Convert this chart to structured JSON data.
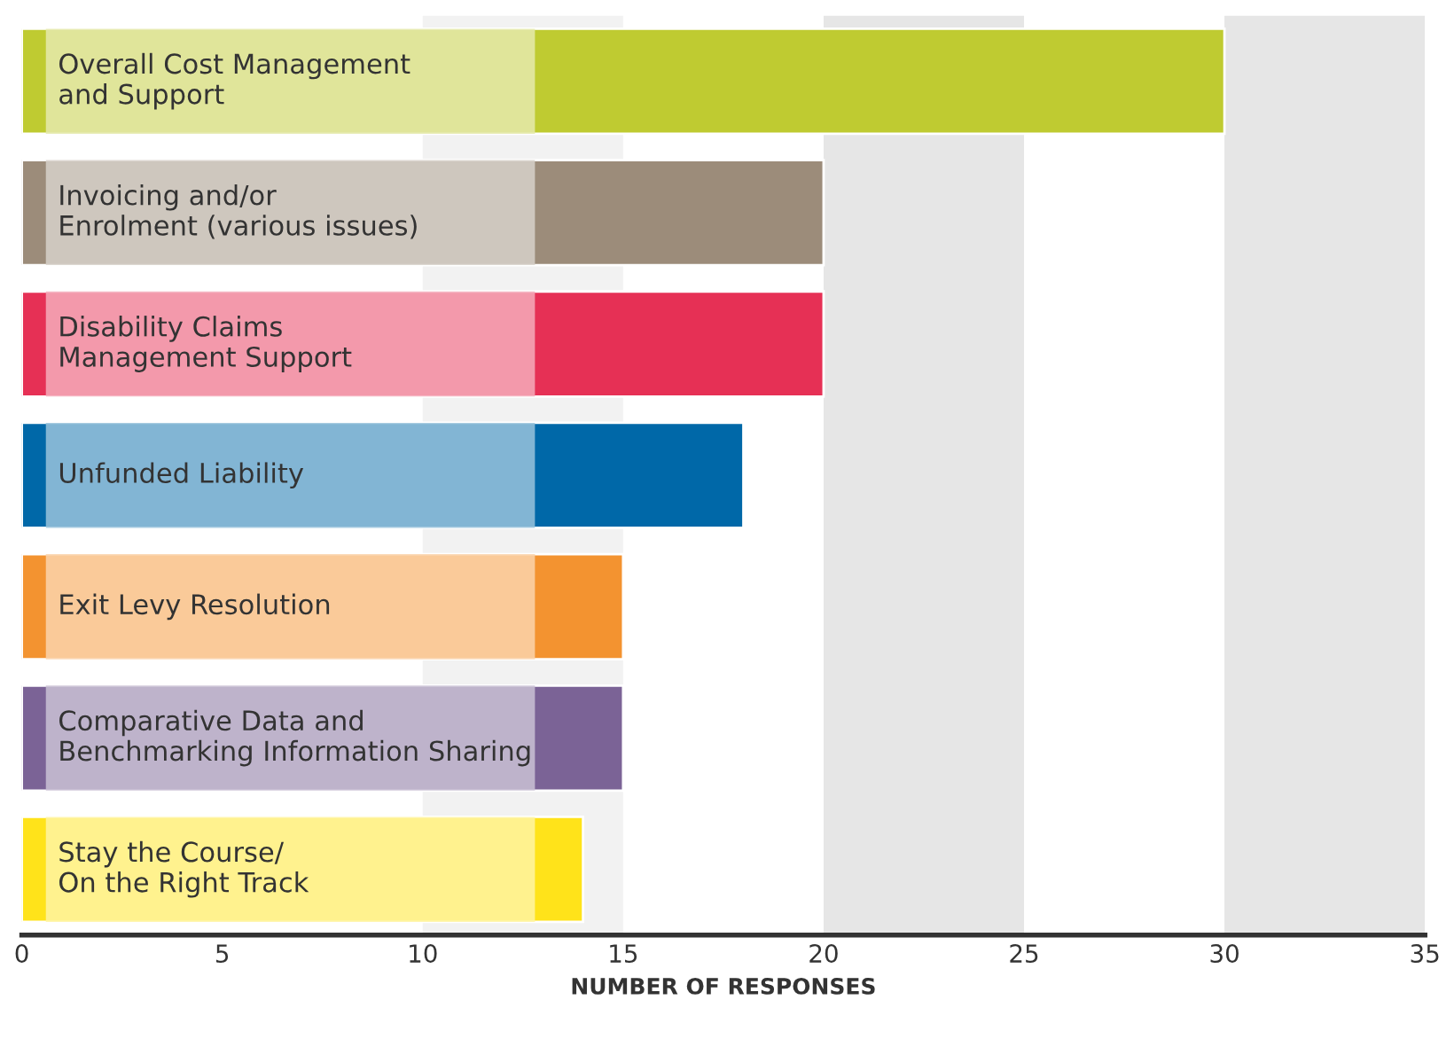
{
  "chart_data": {
    "type": "bar",
    "orientation": "horizontal",
    "categories": [
      "Overall Cost Management\nand Support",
      "Invoicing and/or\nEnrolment (various issues)",
      "Disability Claims\nManagement Support",
      "Unfunded Liability",
      "Exit Levy Resolution",
      "Comparative Data and\nBenchmarking Information Sharing",
      "Stay the Course/\nOn the Right Track"
    ],
    "values": [
      30,
      20,
      20,
      18,
      15,
      15,
      14
    ],
    "colors": [
      "#bfcb31",
      "#9c8c7a",
      "#e63055",
      "#0068a8",
      "#f39330",
      "#7b6396",
      "#ffe31a"
    ],
    "xlabel": "NUMBER OF RESPONSES",
    "xlim": [
      0,
      35
    ],
    "xticks": [
      0,
      5,
      10,
      15,
      20,
      25,
      30,
      35
    ],
    "bands": [
      {
        "axis": "x",
        "from": 10,
        "to": 15,
        "color": "#f2f2f2"
      },
      {
        "axis": "x",
        "from": 20,
        "to": 25,
        "color": "#e6e6e6"
      },
      {
        "axis": "x",
        "from": 30,
        "to": 35,
        "color": "#e6e6e6"
      }
    ],
    "grid": false,
    "legend": false
  }
}
